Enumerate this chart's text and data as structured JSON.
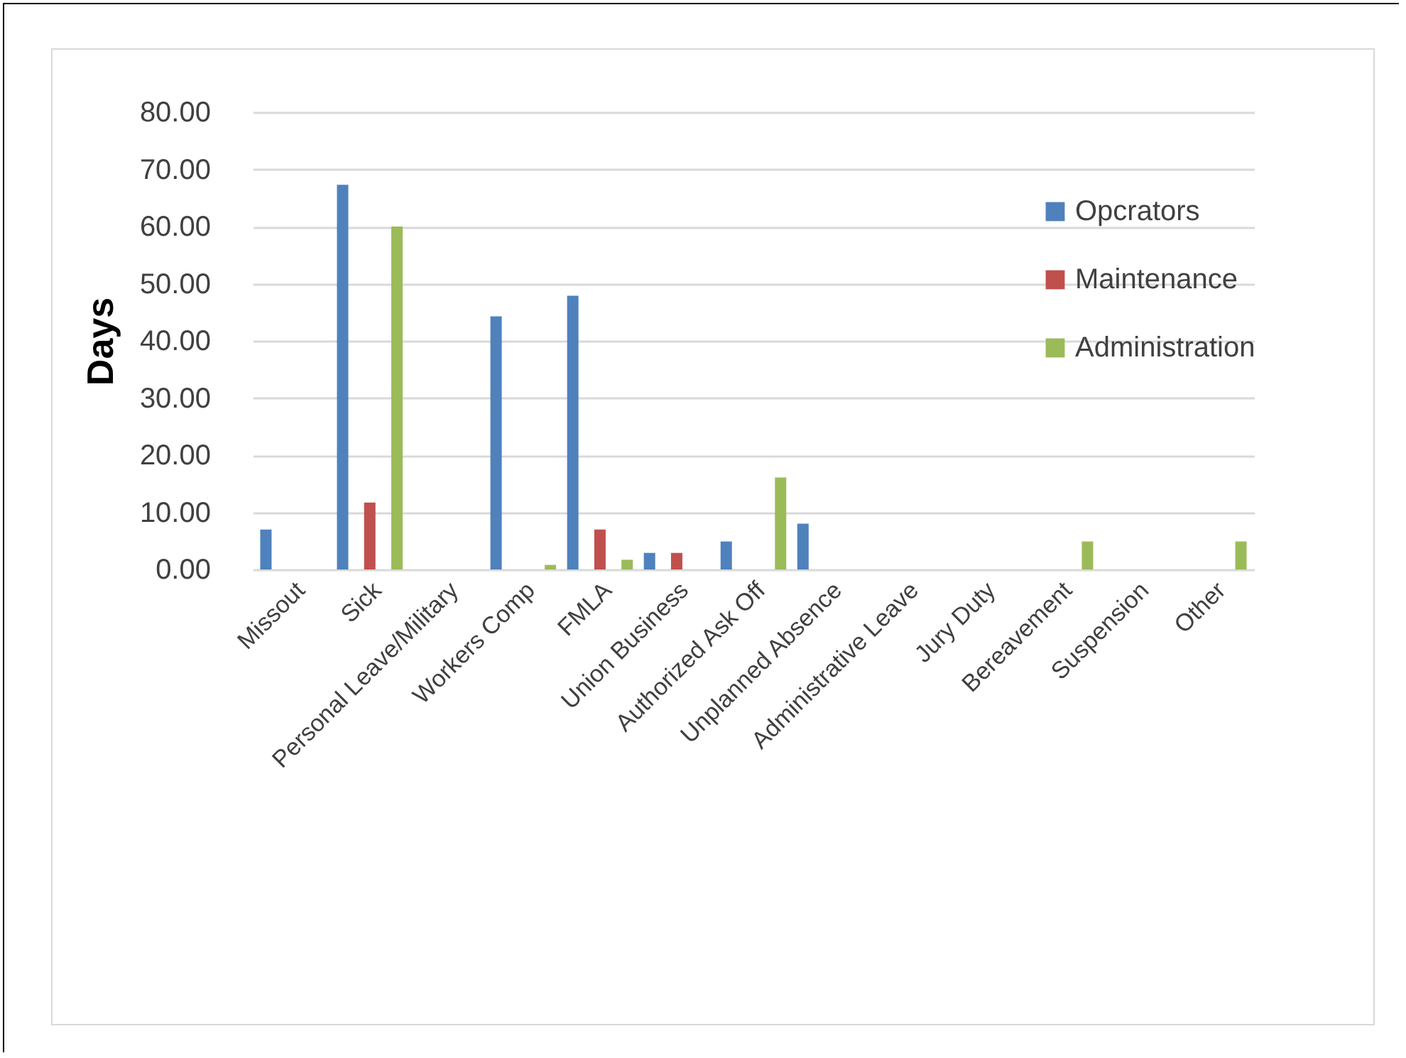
{
  "chart_data": {
    "type": "bar",
    "ylabel": "Days",
    "categories": [
      "Missout",
      "Sick",
      "Personal Leave/Military",
      "Workers Comp",
      "FMLA",
      "Union Business",
      "Authorized Ask Off",
      "Unplanned Absence",
      "Administrative Leave",
      "Jury Duty",
      "Bereavement",
      "Suspension",
      "Other"
    ],
    "series": [
      {
        "name": "Opcrators",
        "color": "#4f81bd",
        "values": [
          7,
          67.3,
          0,
          44.3,
          47.9,
          2.9,
          4.9,
          8,
          0,
          0,
          0,
          0,
          0
        ]
      },
      {
        "name": "Maintenance",
        "color": "#c0504d",
        "values": [
          0,
          11.7,
          0,
          0,
          7,
          2.9,
          0,
          0,
          0,
          0,
          0,
          0,
          0
        ]
      },
      {
        "name": "Administration",
        "color": "#9bbb59",
        "values": [
          0,
          60,
          0,
          0.8,
          1.7,
          0,
          16.1,
          0,
          0,
          0,
          4.9,
          0,
          4.9
        ]
      }
    ],
    "ylim": [
      0,
      80
    ],
    "yticks": [
      {
        "value": 0,
        "label": "0.00"
      },
      {
        "value": 10,
        "label": "10.00"
      },
      {
        "value": 20,
        "label": "20.00"
      },
      {
        "value": 30,
        "label": "30.00"
      },
      {
        "value": 40,
        "label": "40.00"
      },
      {
        "value": 50,
        "label": "50.00"
      },
      {
        "value": 60,
        "label": "60.00"
      },
      {
        "value": 70,
        "label": "70.00"
      },
      {
        "value": 80,
        "label": "80.00"
      }
    ],
    "grid": "y",
    "legend": "top right"
  }
}
